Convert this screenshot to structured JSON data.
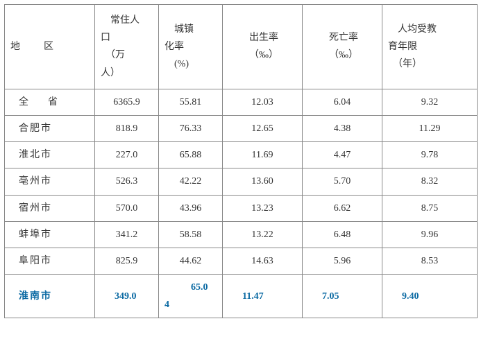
{
  "table": {
    "header": {
      "region": "地　　区",
      "population_l1": "　常住人",
      "population_l2": "口",
      "population_l3": "　（万",
      "population_l4": "人）",
      "urban_l1": "　城镇",
      "urban_l2": "化率",
      "urban_l3": "　(%)",
      "birth_l1": "出生率",
      "birth_l2": "（‰）",
      "death_l1": "死亡率",
      "death_l2": "（‰）",
      "edu_l1": "　人均受教",
      "edu_l2": "育年限",
      "edu_l3": "　（年）"
    },
    "rows": [
      {
        "region": "全　　省",
        "spaced": false,
        "population": "6365.9",
        "urban": "55.81",
        "birth": "12.03",
        "death": "6.04",
        "edu": "9.32",
        "highlight": false
      },
      {
        "region": "合肥市",
        "spaced": true,
        "population": "818.9",
        "urban": "76.33",
        "birth": "12.65",
        "death": "4.38",
        "edu": "11.29",
        "highlight": false
      },
      {
        "region": "淮北市",
        "spaced": true,
        "population": "227.0",
        "urban": "65.88",
        "birth": "11.69",
        "death": "4.47",
        "edu": "9.78",
        "highlight": false
      },
      {
        "region": "亳州市",
        "spaced": true,
        "population": "526.3",
        "urban": "42.22",
        "birth": "13.60",
        "death": "5.70",
        "edu": "8.32",
        "highlight": false
      },
      {
        "region": "宿州市",
        "spaced": true,
        "population": "570.0",
        "urban": "43.96",
        "birth": "13.23",
        "death": "6.62",
        "edu": "8.75",
        "highlight": false
      },
      {
        "region": "蚌埠市",
        "spaced": true,
        "population": "341.2",
        "urban": "58.58",
        "birth": "13.22",
        "death": "6.48",
        "edu": "9.96",
        "highlight": false
      },
      {
        "region": "阜阳市",
        "spaced": true,
        "population": "825.9",
        "urban": "44.62",
        "birth": "14.63",
        "death": "5.96",
        "edu": "8.53",
        "highlight": false
      },
      {
        "region": "淮南市",
        "spaced": true,
        "population": "349.0",
        "urban_a": "　65.0",
        "urban_b": "4",
        "birth": "11.47",
        "death": "7.05",
        "edu": "9.40",
        "highlight": true
      }
    ],
    "colors": {
      "text": "#333333",
      "highlight": "#0b6aa3",
      "border": "#888888",
      "background": "#ffffff"
    }
  }
}
